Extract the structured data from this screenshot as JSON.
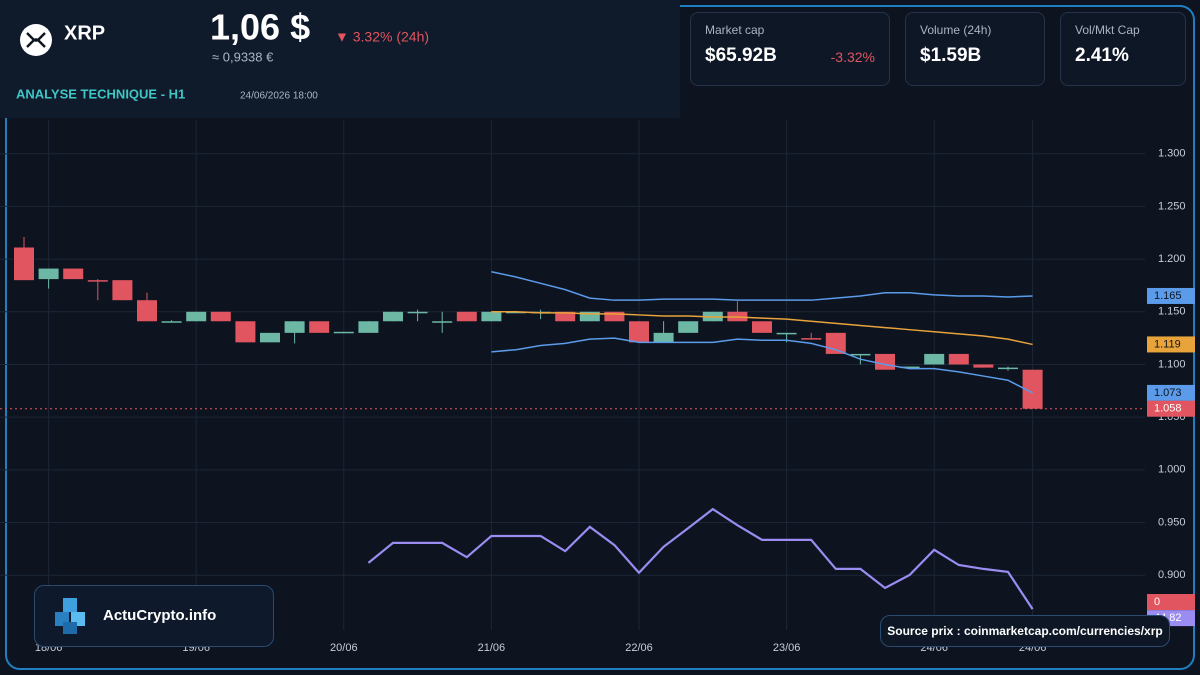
{
  "header": {
    "symbol": "XRP",
    "price": "1,06 $",
    "change": "▼ 3.32% (24h)",
    "price_eur": "≈ 0,9338 €",
    "section": "ANALYSE TECHNIQUE - H1",
    "timestamp": "24/06/2026 18:00"
  },
  "stats": [
    {
      "label": "Market cap",
      "value": "$65.92B",
      "change": "-3.32%"
    },
    {
      "label": "Volume (24h)",
      "value": "$1.59B"
    },
    {
      "label": "Vol/Mkt Cap",
      "value": "2.41%"
    }
  ],
  "chart_data": {
    "type": "candlestick",
    "categories": [
      null,
      "18/06",
      null,
      null,
      null,
      null,
      null,
      "19/06",
      null,
      null,
      null,
      null,
      null,
      "20/06",
      null,
      null,
      null,
      null,
      null,
      "21/06",
      null,
      null,
      null,
      null,
      null,
      "22/06",
      null,
      null,
      null,
      null,
      null,
      "23/06",
      null,
      null,
      null,
      null,
      null,
      "24/06",
      null,
      null,
      null,
      "24/06"
    ],
    "open": [
      1.211,
      1.181,
      1.191,
      1.18,
      1.18,
      1.161,
      1.141,
      1.141,
      1.15,
      1.141,
      1.121,
      1.13,
      1.141,
      1.13,
      1.13,
      1.141,
      1.15,
      1.141,
      1.15,
      1.141,
      1.15,
      1.15,
      1.15,
      1.141,
      1.15,
      1.141,
      1.121,
      1.13,
      1.141,
      1.15,
      1.141,
      1.13,
      1.125,
      1.13,
      1.11,
      1.11,
      1.097,
      1.1,
      1.11,
      1.1,
      1.097,
      1.095
    ],
    "high": [
      1.221,
      1.191,
      1.191,
      1.181,
      1.18,
      1.168,
      1.142,
      1.15,
      1.15,
      1.141,
      1.13,
      1.141,
      1.141,
      1.131,
      1.141,
      1.15,
      1.152,
      1.15,
      1.15,
      1.15,
      1.15,
      1.152,
      1.15,
      1.15,
      1.15,
      1.141,
      1.141,
      1.141,
      1.15,
      1.16,
      1.141,
      1.13,
      1.13,
      1.13,
      1.11,
      1.11,
      1.098,
      1.11,
      1.11,
      1.1,
      1.098,
      1.095
    ],
    "low": [
      1.18,
      1.172,
      1.181,
      1.161,
      1.161,
      1.141,
      1.14,
      1.141,
      1.141,
      1.121,
      1.121,
      1.12,
      1.13,
      1.13,
      1.13,
      1.141,
      1.141,
      1.13,
      1.141,
      1.141,
      1.149,
      1.143,
      1.141,
      1.141,
      1.141,
      1.121,
      1.121,
      1.13,
      1.141,
      1.141,
      1.13,
      1.121,
      1.124,
      1.11,
      1.1,
      1.095,
      1.096,
      1.1,
      1.1,
      1.097,
      1.094,
      1.058
    ],
    "close": [
      1.18,
      1.191,
      1.181,
      1.179,
      1.161,
      1.141,
      1.141,
      1.15,
      1.141,
      1.121,
      1.13,
      1.141,
      1.13,
      1.131,
      1.141,
      1.15,
      1.15,
      1.141,
      1.141,
      1.15,
      1.15,
      1.15,
      1.141,
      1.15,
      1.141,
      1.121,
      1.13,
      1.141,
      1.15,
      1.141,
      1.13,
      1.13,
      1.124,
      1.11,
      1.11,
      1.095,
      1.098,
      1.11,
      1.1,
      1.097,
      1.097,
      1.058
    ],
    "up_color": "#6cb8a5",
    "down_color": "#e0555f",
    "ylim": [
      0.848,
      1.332
    ],
    "yticks": [
      {
        "value": 0.9,
        "label": "0.900"
      },
      {
        "value": 0.95,
        "label": "0.950"
      },
      {
        "value": 1.0,
        "label": "1.000"
      },
      {
        "value": 1.05,
        "label": "1.050"
      },
      {
        "value": 1.1,
        "label": "1.100"
      },
      {
        "value": 1.15,
        "label": "1.150"
      },
      {
        "value": 1.2,
        "label": "1.200"
      },
      {
        "value": 1.25,
        "label": "1.250"
      },
      {
        "value": 1.3,
        "label": "1.300"
      }
    ],
    "grid": true,
    "overlays": [
      {
        "color": "#5b9bea",
        "values": [
          null,
          null,
          null,
          null,
          null,
          null,
          null,
          null,
          null,
          null,
          null,
          null,
          null,
          null,
          null,
          null,
          null,
          null,
          null,
          1.188,
          1.183,
          1.177,
          1.171,
          1.163,
          1.161,
          1.161,
          1.162,
          1.162,
          1.162,
          1.161,
          1.161,
          1.161,
          1.161,
          1.163,
          1.165,
          1.168,
          1.168,
          1.166,
          1.165,
          1.165,
          1.164,
          1.165
        ]
      },
      {
        "color": "#e8a33a",
        "values": [
          null,
          null,
          null,
          null,
          null,
          null,
          null,
          null,
          null,
          null,
          null,
          null,
          null,
          null,
          null,
          null,
          null,
          null,
          null,
          1.15,
          1.15,
          1.149,
          1.149,
          1.148,
          1.148,
          1.147,
          1.146,
          1.146,
          1.145,
          1.145,
          1.144,
          1.143,
          1.141,
          1.139,
          1.137,
          1.135,
          1.133,
          1.131,
          1.129,
          1.127,
          1.124,
          1.119
        ]
      },
      {
        "color": "#5b9bea",
        "values": [
          null,
          null,
          null,
          null,
          null,
          null,
          null,
          null,
          null,
          null,
          null,
          null,
          null,
          null,
          null,
          null,
          null,
          null,
          null,
          1.112,
          1.114,
          1.118,
          1.12,
          1.124,
          1.125,
          1.121,
          1.121,
          1.121,
          1.121,
          1.124,
          1.123,
          1.123,
          1.12,
          1.114,
          1.105,
          1.1,
          1.096,
          1.096,
          1.093,
          1.089,
          1.085,
          1.073
        ]
      }
    ],
    "indicator": {
      "color": "#9a8cf0",
      "y2lim": [
        40,
        70
      ],
      "zero_label": 0,
      "values": [
        null,
        null,
        null,
        null,
        null,
        null,
        null,
        null,
        null,
        null,
        null,
        null,
        null,
        null,
        55.5,
        60.1,
        60.1,
        60.1,
        56.8,
        61.7,
        61.7,
        61.7,
        58.2,
        63.8,
        59.6,
        53.2,
        59.2,
        63.5,
        67.9,
        64.2,
        60.8,
        60.8,
        60.8,
        54.1,
        54.1,
        49.7,
        52.7,
        58.5,
        55.0,
        54.1,
        53.4,
        44.82
      ]
    }
  },
  "branding": "ActuCrypto.info",
  "source": "Source prix : coinmarketcap.com/currencies/xrp"
}
